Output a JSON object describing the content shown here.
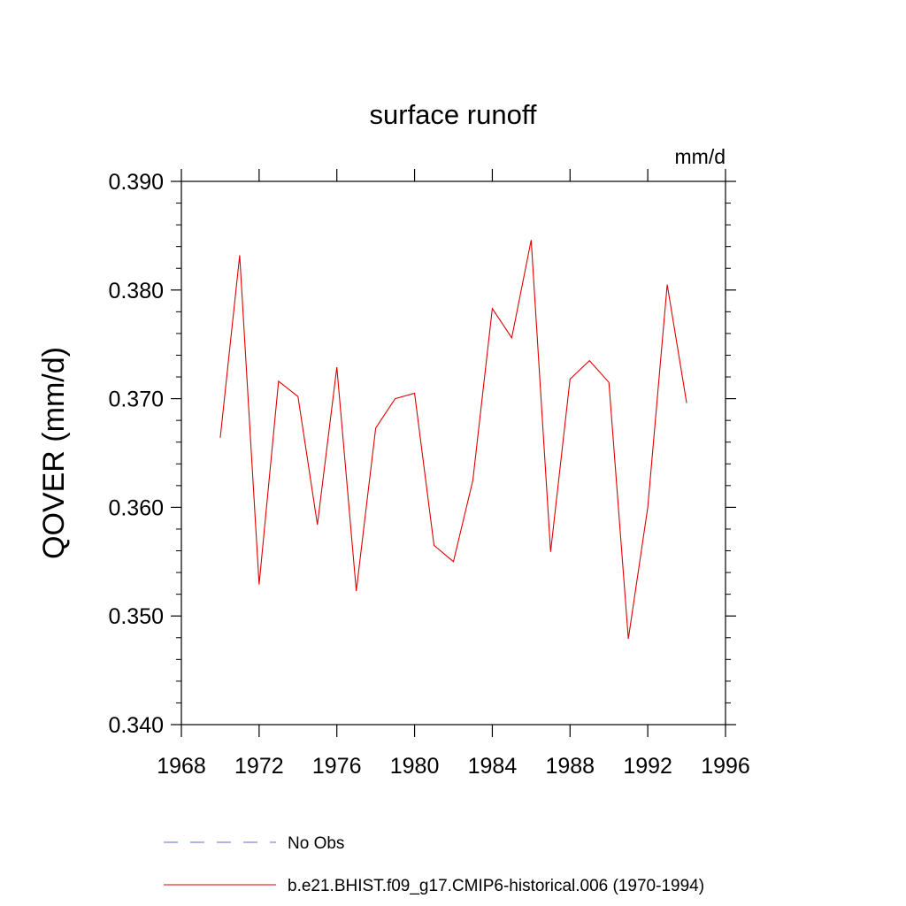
{
  "chart_data": {
    "type": "line",
    "title": "surface runoff",
    "units_label": "mm/d",
    "xlabel": "",
    "ylabel": "QOVER  (mm/d)",
    "xlim": [
      1968,
      1996
    ],
    "ylim": [
      0.34,
      0.39
    ],
    "x_ticks": [
      "1968",
      "1972",
      "1976",
      "1980",
      "1984",
      "1988",
      "1992",
      "1996"
    ],
    "y_ticks": [
      "0.340",
      "0.350",
      "0.360",
      "0.370",
      "0.380",
      "0.390"
    ],
    "grid": false,
    "series": [
      {
        "name": "b.e21.BHIST.f09_g17.CMIP6-historical.006 (1970-1994)",
        "color": "#e00000",
        "style": "solid",
        "x": [
          1970,
          1971,
          1972,
          1973,
          1974,
          1975,
          1976,
          1977,
          1978,
          1979,
          1980,
          1981,
          1982,
          1983,
          1984,
          1985,
          1986,
          1987,
          1988,
          1989,
          1990,
          1991,
          1992,
          1993,
          1994
        ],
        "y": [
          0.3664,
          0.3832,
          0.3529,
          0.3716,
          0.3702,
          0.3584,
          0.3729,
          0.3523,
          0.3673,
          0.37,
          0.3705,
          0.3565,
          0.355,
          0.3625,
          0.3783,
          0.3756,
          0.3846,
          0.3559,
          0.3718,
          0.3735,
          0.3715,
          0.3479,
          0.36,
          0.3805,
          0.3696
        ]
      }
    ],
    "legend": {
      "placement": "bottom",
      "entries": [
        {
          "label": "No Obs",
          "color": "#6a6acd",
          "style": "dashed"
        },
        {
          "label": "b.e21.BHIST.f09_g17.CMIP6-historical.006 (1970-1994)",
          "color": "#e00000",
          "style": "solid"
        }
      ]
    }
  }
}
